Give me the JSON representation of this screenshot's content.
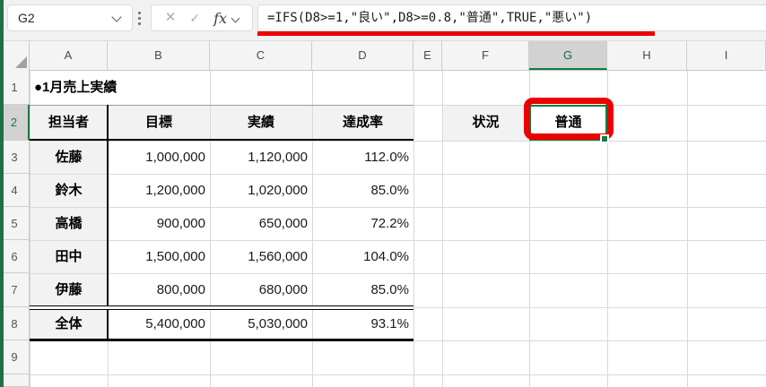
{
  "topbar": {
    "name_box": "G2",
    "formula": "=IFS(D8>=1,\"良い\",D8>=0.8,\"普通\",TRUE,\"悪い\")",
    "cancel_label": "✕",
    "enter_label": "✓",
    "fx_label": "fx"
  },
  "sheet": {
    "column_headers": [
      "A",
      "B",
      "C",
      "D",
      "E",
      "F",
      "G",
      "H",
      "I"
    ],
    "row_headers": [
      "1",
      "2",
      "3",
      "4",
      "5",
      "6",
      "7",
      "8",
      "9"
    ],
    "selected_cell": "G2",
    "selected_column": "G",
    "selected_row": "2",
    "title_cell": "●1月売上実績",
    "status_label": "状況",
    "status_value": "普通",
    "table": {
      "headers": [
        "担当者",
        "目標",
        "実績",
        "達成率"
      ],
      "rows": [
        [
          "佐藤",
          "1,000,000",
          "1,120,000",
          "112.0%"
        ],
        [
          "鈴木",
          "1,200,000",
          "1,020,000",
          "85.0%"
        ],
        [
          "高橋",
          "900,000",
          "650,000",
          "72.2%"
        ],
        [
          "田中",
          "1,500,000",
          "1,560,000",
          "104.0%"
        ],
        [
          "伊藤",
          "800,000",
          "680,000",
          "85.0%"
        ]
      ],
      "total_row": [
        "全体",
        "5,400,000",
        "5,030,000",
        "93.1%"
      ]
    }
  },
  "colors": {
    "excel_green": "#107c41",
    "annotation_red": "#ec0000",
    "cell_fill_gray": "#f2f2f2",
    "selected_header_gray": "#d2d2d2"
  }
}
